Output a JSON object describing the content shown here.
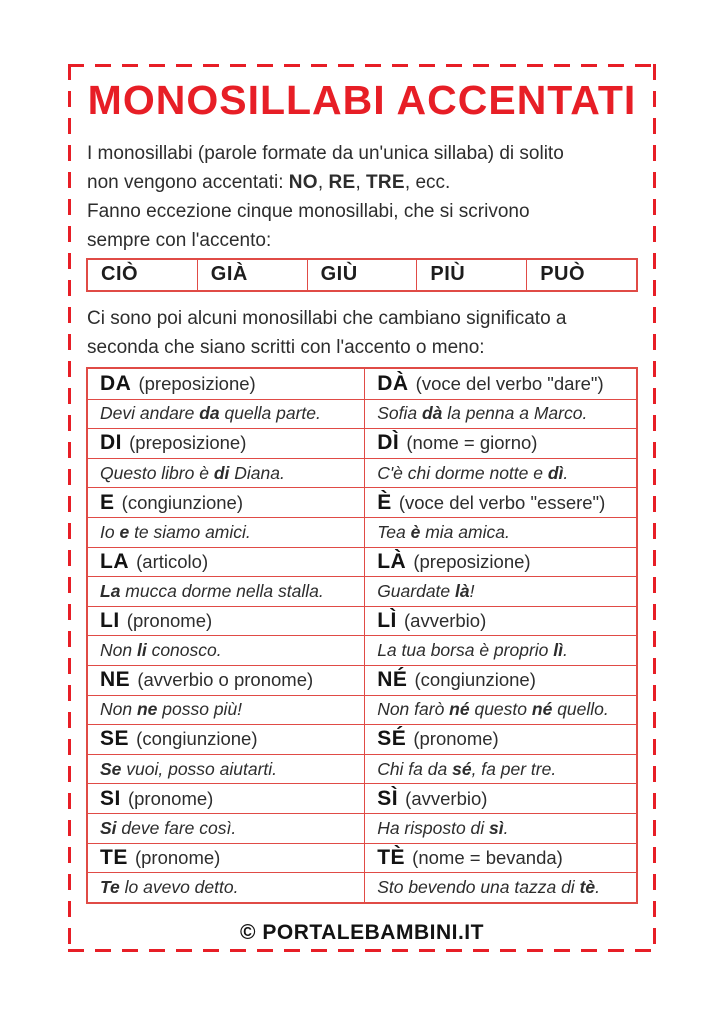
{
  "title": "MONOSILLABI ACCENTATI",
  "intro": {
    "p1": [
      {
        "t": "I monosillabi (parole formate da un'unica sillaba) di solito"
      },
      {
        "br": true
      },
      {
        "t": "non vengono accentati: "
      },
      {
        "t": "NO",
        "b": true
      },
      {
        "t": ", "
      },
      {
        "t": "RE",
        "b": true
      },
      {
        "t": ", "
      },
      {
        "t": "TRE",
        "b": true
      },
      {
        "t": ", ecc."
      }
    ],
    "p2": [
      {
        "t": "Fanno eccezione cinque monosillabi, che si scrivono"
      },
      {
        "br": true
      },
      {
        "t": "sempre con l'accento:"
      }
    ],
    "p3": [
      {
        "t": "Ci sono poi alcuni monosillabi che cambiano significato a"
      },
      {
        "br": true
      },
      {
        "t": "seconda che siano scritti con l'accento o meno:"
      }
    ]
  },
  "accent_table": {
    "items": [
      "CIÒ",
      "GIÀ",
      "GIÙ",
      "PIÙ",
      "PUÒ"
    ]
  },
  "word_table": {
    "rows": [
      {
        "kind": "term",
        "left": [
          {
            "t": "DA",
            "b": true
          },
          {
            "t": " (preposizione)"
          }
        ],
        "right": [
          {
            "t": "DÀ",
            "b": true
          },
          {
            "t": " (voce del verbo \"dare\")"
          }
        ]
      },
      {
        "kind": "example",
        "left": [
          {
            "t": "Devi andare "
          },
          {
            "t": "da",
            "b": true
          },
          {
            "t": " quella parte."
          }
        ],
        "right": [
          {
            "t": "Sofia "
          },
          {
            "t": "dà",
            "b": true
          },
          {
            "t": " la penna a Marco."
          }
        ]
      },
      {
        "kind": "term",
        "left": [
          {
            "t": "DI",
            "b": true
          },
          {
            "t": " (preposizione)"
          }
        ],
        "right": [
          {
            "t": "DÌ",
            "b": true
          },
          {
            "t": " (nome = giorno)"
          }
        ]
      },
      {
        "kind": "example",
        "left": [
          {
            "t": "Questo libro è "
          },
          {
            "t": "di",
            "b": true
          },
          {
            "t": " Diana."
          }
        ],
        "right": [
          {
            "t": "C'è chi dorme notte e "
          },
          {
            "t": "dì",
            "b": true
          },
          {
            "t": "."
          }
        ]
      },
      {
        "kind": "term",
        "left": [
          {
            "t": "E",
            "b": true
          },
          {
            "t": " (congiunzione)"
          }
        ],
        "right": [
          {
            "t": "È",
            "b": true
          },
          {
            "t": " (voce del verbo \"essere\")"
          }
        ]
      },
      {
        "kind": "example",
        "left": [
          {
            "t": "Io "
          },
          {
            "t": "e",
            "b": true
          },
          {
            "t": " te siamo amici."
          }
        ],
        "right": [
          {
            "t": "Tea "
          },
          {
            "t": "è",
            "b": true
          },
          {
            "t": " mia amica."
          }
        ]
      },
      {
        "kind": "term",
        "left": [
          {
            "t": "LA",
            "b": true
          },
          {
            "t": " (articolo)"
          }
        ],
        "right": [
          {
            "t": "LÀ",
            "b": true
          },
          {
            "t": " (preposizione)"
          }
        ]
      },
      {
        "kind": "example",
        "left": [
          {
            "t": "La",
            "b": true
          },
          {
            "t": " mucca dorme nella stalla."
          }
        ],
        "right": [
          {
            "t": "Guardate "
          },
          {
            "t": "là",
            "b": true
          },
          {
            "t": "!"
          }
        ]
      },
      {
        "kind": "term",
        "left": [
          {
            "t": "LI",
            "b": true
          },
          {
            "t": " (pronome)"
          }
        ],
        "right": [
          {
            "t": "LÌ",
            "b": true
          },
          {
            "t": " (avverbio)"
          }
        ]
      },
      {
        "kind": "example",
        "left": [
          {
            "t": "Non "
          },
          {
            "t": "li",
            "b": true
          },
          {
            "t": " conosco."
          }
        ],
        "right": [
          {
            "t": "La tua borsa è proprio "
          },
          {
            "t": "lì",
            "b": true
          },
          {
            "t": "."
          }
        ]
      },
      {
        "kind": "term",
        "left": [
          {
            "t": "NE",
            "b": true
          },
          {
            "t": " (avverbio o pronome)"
          }
        ],
        "right": [
          {
            "t": "NÉ",
            "b": true
          },
          {
            "t": " (congiunzione)"
          }
        ]
      },
      {
        "kind": "example",
        "left": [
          {
            "t": "Non "
          },
          {
            "t": "ne",
            "b": true
          },
          {
            "t": " posso più!"
          }
        ],
        "right": [
          {
            "t": "Non farò "
          },
          {
            "t": "né",
            "b": true
          },
          {
            "t": " questo "
          },
          {
            "t": "né",
            "b": true
          },
          {
            "t": " quello."
          }
        ]
      },
      {
        "kind": "term",
        "left": [
          {
            "t": "SE",
            "b": true
          },
          {
            "t": " (congiunzione)"
          }
        ],
        "right": [
          {
            "t": "SÉ",
            "b": true
          },
          {
            "t": " (pronome)"
          }
        ]
      },
      {
        "kind": "example",
        "left": [
          {
            "t": "Se",
            "b": true
          },
          {
            "t": " vuoi, posso aiutarti."
          }
        ],
        "right": [
          {
            "t": "Chi fa da "
          },
          {
            "t": "sé",
            "b": true
          },
          {
            "t": ", fa per tre."
          }
        ]
      },
      {
        "kind": "term",
        "left": [
          {
            "t": "SI",
            "b": true
          },
          {
            "t": " (pronome)"
          }
        ],
        "right": [
          {
            "t": "SÌ",
            "b": true
          },
          {
            "t": " (avverbio)"
          }
        ]
      },
      {
        "kind": "example",
        "left": [
          {
            "t": "Si",
            "b": true
          },
          {
            "t": " deve fare così."
          }
        ],
        "right": [
          {
            "t": "Ha risposto di "
          },
          {
            "t": "sì",
            "b": true
          },
          {
            "t": "."
          }
        ]
      },
      {
        "kind": "term",
        "left": [
          {
            "t": "TE",
            "b": true
          },
          {
            "t": " (pronome)"
          }
        ],
        "right": [
          {
            "t": "TÈ",
            "b": true
          },
          {
            "t": " (nome = bevanda)"
          }
        ]
      },
      {
        "kind": "example",
        "left": [
          {
            "t": "Te",
            "b": true
          },
          {
            "t": " lo avevo detto."
          }
        ],
        "right": [
          {
            "t": "Sto bevendo una tazza di "
          },
          {
            "t": "tè",
            "b": true
          },
          {
            "t": "."
          }
        ]
      }
    ]
  },
  "footer": {
    "text": "© PORTALEBAMBINI.IT"
  },
  "colors": {
    "accent_red": "#e71e26",
    "table_border_red": "#e04b46",
    "text": "#2d2d2d"
  }
}
